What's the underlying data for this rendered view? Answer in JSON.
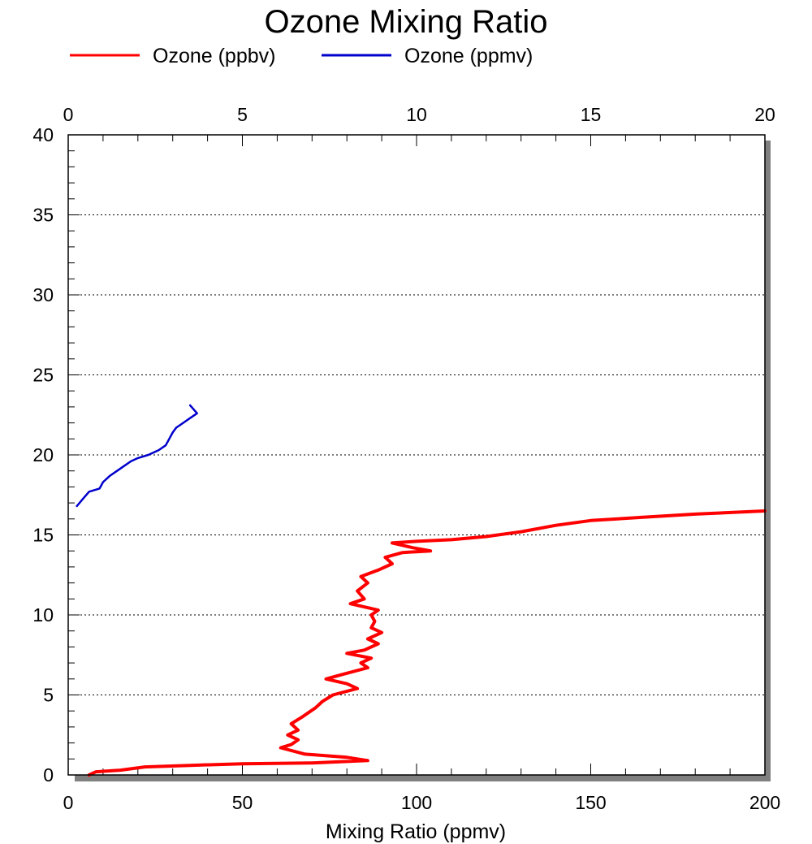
{
  "chart_data": {
    "type": "line",
    "title": "Ozone Mixing Ratio",
    "xlabel": "Mixing Ratio (ppmv)",
    "ylabel": "",
    "x_bottom": {
      "lim": [
        0,
        200
      ],
      "ticks": [
        "0",
        "50",
        "100",
        "150",
        "200"
      ],
      "tick_values": [
        0,
        50,
        100,
        150,
        200
      ]
    },
    "x_top": {
      "lim": [
        0,
        20
      ],
      "ticks": [
        "0",
        "5",
        "10",
        "15",
        "20"
      ],
      "tick_values": [
        0,
        5,
        10,
        15,
        20
      ]
    },
    "y": {
      "lim": [
        0,
        40
      ],
      "ticks": [
        "0",
        "5",
        "10",
        "15",
        "20",
        "25",
        "30",
        "35",
        "40"
      ],
      "tick_values": [
        0,
        5,
        10,
        15,
        20,
        25,
        30,
        35,
        40
      ]
    },
    "grid": "horizontal dotted",
    "legend_position": "top",
    "series": [
      {
        "name": "Ozone (ppbv)",
        "color": "#ff0000",
        "axis": "bottom",
        "points": [
          [
            6,
            0
          ],
          [
            8,
            0.2
          ],
          [
            15,
            0.3
          ],
          [
            22,
            0.5
          ],
          [
            35,
            0.6
          ],
          [
            50,
            0.7
          ],
          [
            70,
            0.75
          ],
          [
            86,
            0.9
          ],
          [
            80,
            1.1
          ],
          [
            68,
            1.3
          ],
          [
            61,
            1.7
          ],
          [
            64,
            1.9
          ],
          [
            66,
            2.2
          ],
          [
            63,
            2.5
          ],
          [
            66,
            2.8
          ],
          [
            64,
            3.2
          ],
          [
            67,
            3.6
          ],
          [
            69,
            3.9
          ],
          [
            71,
            4.2
          ],
          [
            73,
            4.6
          ],
          [
            76,
            5.0
          ],
          [
            83,
            5.4
          ],
          [
            80,
            5.7
          ],
          [
            74,
            6.0
          ],
          [
            79,
            6.3
          ],
          [
            86,
            6.7
          ],
          [
            84,
            7.0
          ],
          [
            87,
            7.3
          ],
          [
            80,
            7.6
          ],
          [
            85,
            7.8
          ],
          [
            89,
            8.2
          ],
          [
            86,
            8.5
          ],
          [
            90,
            8.9
          ],
          [
            87,
            9.2
          ],
          [
            88,
            9.6
          ],
          [
            87,
            10.0
          ],
          [
            89,
            10.3
          ],
          [
            81,
            10.7
          ],
          [
            85,
            11.0
          ],
          [
            83,
            11.5
          ],
          [
            86,
            12.0
          ],
          [
            84,
            12.4
          ],
          [
            89,
            12.8
          ],
          [
            93,
            13.2
          ],
          [
            91,
            13.6
          ],
          [
            96,
            13.9
          ],
          [
            104,
            14.0
          ],
          [
            99,
            14.2
          ],
          [
            93,
            14.5
          ],
          [
            100,
            14.6
          ],
          [
            110,
            14.7
          ],
          [
            120,
            14.9
          ],
          [
            130,
            15.2
          ],
          [
            140,
            15.6
          ],
          [
            150,
            15.9
          ],
          [
            165,
            16.1
          ],
          [
            180,
            16.3
          ],
          [
            200,
            16.5
          ]
        ]
      },
      {
        "name": "Ozone (ppmv)",
        "color": "#0000cc",
        "axis": "top",
        "points": [
          [
            0.25,
            16.8
          ],
          [
            0.4,
            17.2
          ],
          [
            0.6,
            17.7
          ],
          [
            0.9,
            17.9
          ],
          [
            1.0,
            18.3
          ],
          [
            1.2,
            18.7
          ],
          [
            1.4,
            19.0
          ],
          [
            1.6,
            19.3
          ],
          [
            1.8,
            19.6
          ],
          [
            2.0,
            19.8
          ],
          [
            2.3,
            20.0
          ],
          [
            2.6,
            20.3
          ],
          [
            2.8,
            20.6
          ],
          [
            2.9,
            21.0
          ],
          [
            3.0,
            21.4
          ],
          [
            3.1,
            21.7
          ],
          [
            3.3,
            22.0
          ],
          [
            3.5,
            22.3
          ],
          [
            3.7,
            22.6
          ],
          [
            3.5,
            23.1
          ]
        ]
      }
    ]
  }
}
